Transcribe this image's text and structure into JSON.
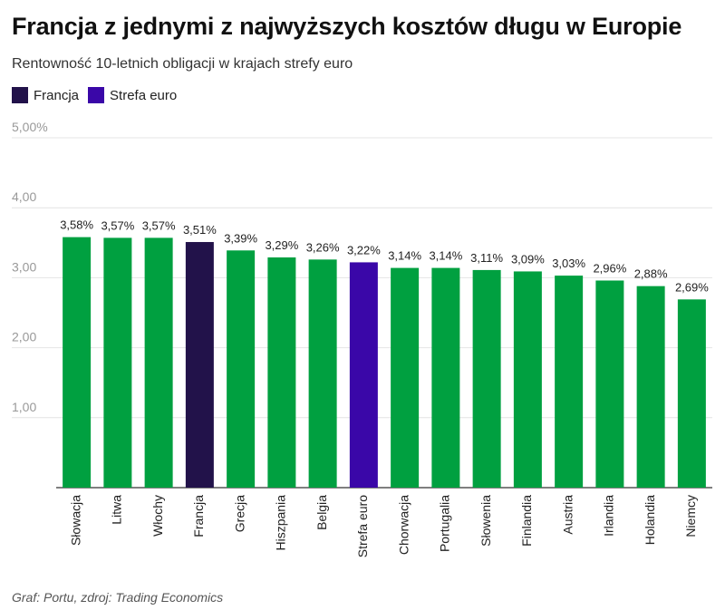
{
  "title": "Francja z jednymi z najwyższych kosztów długu w Europie",
  "subtitle": "Rentowność 10-letnich obligacji w krajach strefy euro",
  "footer": "Graf: Portu, zdroj: Trading Economics",
  "legend": [
    {
      "label": "Francja",
      "color": "#22124a"
    },
    {
      "label": "Strefa euro",
      "color": "#3a07a8"
    }
  ],
  "chart_data": {
    "type": "bar",
    "categories": [
      "Słowacja",
      "Litwa",
      "Włochy",
      "Francja",
      "Grecja",
      "Hiszpania",
      "Belgia",
      "Strefa euro",
      "Chorwacja",
      "Portugalia",
      "Słowenia",
      "Finlandia",
      "Austria",
      "Irlandia",
      "Holandia",
      "Niemcy"
    ],
    "values": [
      3.58,
      3.57,
      3.57,
      3.51,
      3.39,
      3.29,
      3.26,
      3.22,
      3.14,
      3.14,
      3.11,
      3.09,
      3.03,
      2.96,
      2.88,
      2.69
    ],
    "data_labels": [
      "3,58%",
      "3,57%",
      "3,57%",
      "3,51%",
      "3,39%",
      "3,29%",
      "3,26%",
      "3,22%",
      "3,14%",
      "3,14%",
      "3,11%",
      "3,09%",
      "3,03%",
      "2,96%",
      "2,88%",
      "2,69%"
    ],
    "bar_colors": [
      "#00a040",
      "#00a040",
      "#00a040",
      "#22124a",
      "#00a040",
      "#00a040",
      "#00a040",
      "#3a07a8",
      "#00a040",
      "#00a040",
      "#00a040",
      "#00a040",
      "#00a040",
      "#00a040",
      "#00a040",
      "#00a040"
    ],
    "y_ticks": [
      {
        "value": 1,
        "label": "1,00"
      },
      {
        "value": 2,
        "label": "2,00"
      },
      {
        "value": 3,
        "label": "3,00"
      },
      {
        "value": 4,
        "label": "4,00"
      },
      {
        "value": 5,
        "label": "5,00%"
      }
    ],
    "ylim": [
      0,
      5
    ],
    "grid": true,
    "legend_position": "top-left",
    "xlabel": "",
    "ylabel": ""
  }
}
